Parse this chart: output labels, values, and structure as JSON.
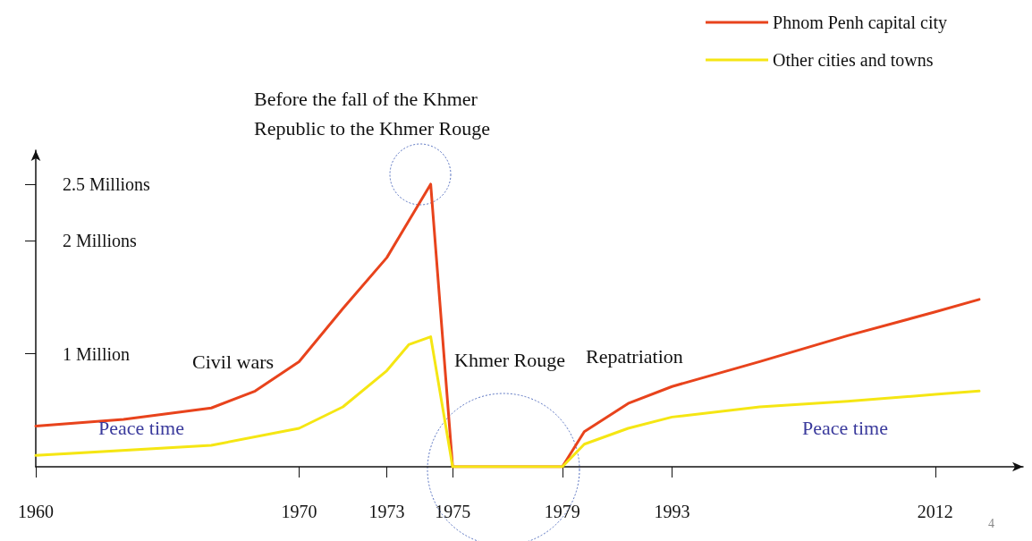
{
  "chart_data": {
    "type": "line",
    "categories": [
      "1960",
      null,
      null,
      null,
      null,
      null,
      null,
      null,
      null,
      null,
      null,
      null,
      "1970",
      null,
      null,
      null,
      "1973",
      null,
      null,
      "1975",
      null,
      null,
      null,
      null,
      "1979",
      null,
      null,
      null,
      null,
      "1993",
      null,
      null,
      null,
      null,
      null,
      null,
      null,
      null,
      null,
      null,
      null,
      "2012",
      null,
      null,
      null,
      null
    ],
    "series": [
      {
        "name": "Phnom Penh capital city",
        "color": "#e8431c",
        "values": [
          0.36,
          null,
          null,
          null,
          0.42,
          null,
          null,
          null,
          0.52,
          null,
          0.67,
          null,
          0.93,
          null,
          1.4,
          null,
          1.85,
          null,
          2.5,
          0,
          0,
          0,
          0,
          0,
          0,
          0.31,
          null,
          0.56,
          null,
          0.71,
          null,
          null,
          null,
          0.93,
          null,
          null,
          null,
          1.16,
          null,
          null,
          null,
          1.37,
          null,
          1.48,
          null,
          null
        ]
      },
      {
        "name": "Other cities and towns",
        "color": "#f5e613",
        "values": [
          0.1,
          null,
          null,
          null,
          null,
          null,
          null,
          null,
          0.19,
          null,
          null,
          null,
          0.34,
          null,
          0.53,
          null,
          0.85,
          1.08,
          1.15,
          0,
          0,
          0,
          0,
          0,
          0,
          0.2,
          null,
          0.34,
          null,
          0.44,
          null,
          null,
          null,
          0.53,
          null,
          null,
          null,
          0.58,
          null,
          null,
          null,
          0.64,
          null,
          0.67,
          null,
          null
        ]
      }
    ],
    "ylim": [
      0,
      2.8
    ],
    "yticks": [
      {
        "value": 1,
        "label": "1 Million"
      },
      {
        "value": 2,
        "label": "2 Millions"
      },
      {
        "value": 2.5,
        "label": "2.5 Millions"
      }
    ],
    "grid": false,
    "legend": "top right",
    "marker": "none",
    "line_style": "solid",
    "annotations": [
      "Before the fall of the Khmer\nRepublic to the Khmer Rouge",
      "Civil wars",
      "Khmer Rouge",
      "Repatriation",
      "Peace time",
      "Peace time",
      "4"
    ]
  }
}
